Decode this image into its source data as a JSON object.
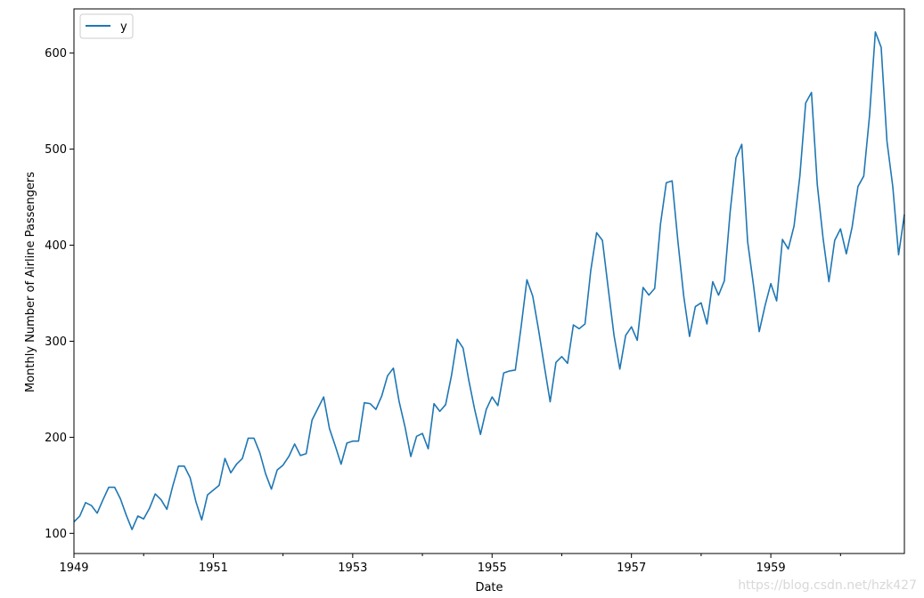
{
  "chart_data": {
    "type": "line",
    "title": "",
    "xlabel": "Date",
    "ylabel": "Monthly Number of Airline Passengers",
    "x_start": "1949-01",
    "x_end": "1960-12",
    "xlim": [
      "1949-01",
      "1960-12"
    ],
    "ylim": [
      79,
      646
    ],
    "x_ticks": [
      "1949",
      "1951",
      "1953",
      "1955",
      "1957",
      "1959"
    ],
    "y_ticks": [
      100,
      200,
      300,
      400,
      500,
      600
    ],
    "grid": false,
    "legend": {
      "position": "top-left",
      "entries": [
        "y"
      ]
    },
    "series": [
      {
        "name": "y",
        "color": "#1f77b4",
        "values": [
          112,
          118,
          132,
          129,
          121,
          135,
          148,
          148,
          136,
          119,
          104,
          118,
          115,
          126,
          141,
          135,
          125,
          149,
          170,
          170,
          158,
          133,
          114,
          140,
          145,
          150,
          178,
          163,
          172,
          178,
          199,
          199,
          184,
          162,
          146,
          166,
          171,
          180,
          193,
          181,
          183,
          218,
          230,
          242,
          209,
          191,
          172,
          194,
          196,
          196,
          236,
          235,
          229,
          243,
          264,
          272,
          237,
          211,
          180,
          201,
          204,
          188,
          235,
          227,
          234,
          264,
          302,
          293,
          259,
          229,
          203,
          229,
          242,
          233,
          267,
          269,
          270,
          315,
          364,
          347,
          312,
          274,
          237,
          278,
          284,
          277,
          317,
          313,
          318,
          374,
          413,
          405,
          355,
          306,
          271,
          306,
          315,
          301,
          356,
          348,
          355,
          422,
          465,
          467,
          404,
          347,
          305,
          336,
          340,
          318,
          362,
          348,
          363,
          435,
          491,
          505,
          404,
          359,
          310,
          337,
          360,
          342,
          406,
          396,
          420,
          472,
          548,
          559,
          463,
          407,
          362,
          405,
          417,
          391,
          419,
          461,
          472,
          535,
          622,
          606,
          508,
          461,
          390,
          432
        ]
      }
    ]
  },
  "watermark": "https://blog.csdn.net/hzk427"
}
